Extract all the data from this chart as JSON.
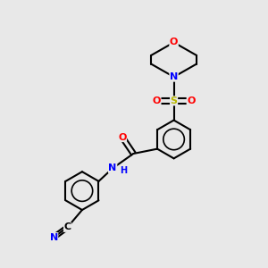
{
  "bg_color": "#e8e8e8",
  "bond_color": "#000000",
  "bond_width": 1.5,
  "atom_colors": {
    "O": "#ff0000",
    "N": "#0000ff",
    "S": "#b8b800",
    "C": "#000000"
  },
  "font_size": 8,
  "figsize": [
    3.0,
    3.0
  ],
  "dpi": 100
}
